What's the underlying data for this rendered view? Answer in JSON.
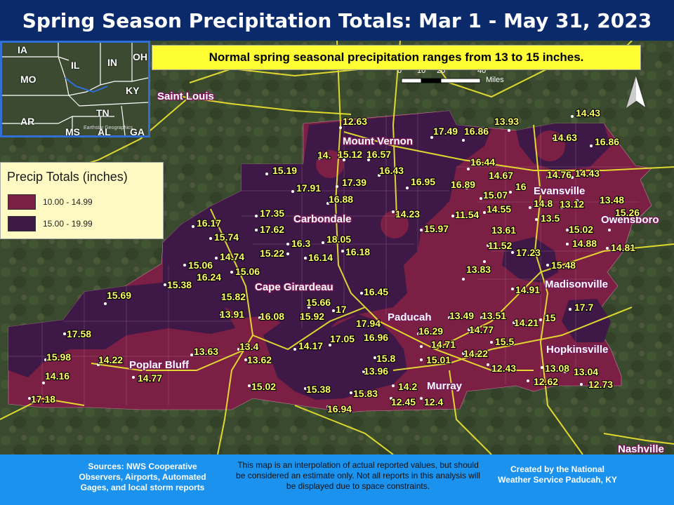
{
  "title": "Spring Season Precipitation Totals: Mar 1 - May 31, 2023",
  "note": "Normal spring seasonal precipitation ranges from 13 to 15 inches.",
  "legend": {
    "title": "Precip Totals (inches)",
    "items": [
      {
        "label": "10.00 - 14.99",
        "color": "#7b1f44"
      },
      {
        "label": "15.00 - 19.99",
        "color": "#3e1846"
      }
    ]
  },
  "scale": {
    "ticks": [
      "0",
      "10",
      "20",
      "40"
    ],
    "unit": "Miles"
  },
  "north_arrow": "north-arrow-icon",
  "inset": {
    "states": [
      {
        "key": "ia",
        "name": "IA"
      },
      {
        "key": "il",
        "name": "IL"
      },
      {
        "key": "in",
        "name": "IN"
      },
      {
        "key": "oh",
        "name": "OH"
      },
      {
        "key": "mo",
        "name": "MO"
      },
      {
        "key": "ky",
        "name": "KY"
      },
      {
        "key": "ar",
        "name": "AR"
      },
      {
        "key": "tn",
        "name": "TN"
      },
      {
        "key": "ms",
        "name": "MS"
      },
      {
        "key": "al",
        "name": "AL"
      },
      {
        "key": "ga",
        "name": "GA"
      }
    ],
    "credit": "Earthstar Geographics"
  },
  "cities": [
    "Saint Louis",
    "Mount Vernon",
    "Carbondale",
    "Evansville",
    "Owensboro",
    "Cape Girardeau",
    "Madisonville",
    "Paducah",
    "Hopkinsville",
    "Poplar Bluff",
    "Murray",
    "Nashville"
  ],
  "values": [
    "12.63",
    "17.49",
    "16.86",
    "13.93",
    "14.43",
    "14.63",
    "16.86",
    "14.",
    "15.12",
    "16.57",
    "16.43",
    "16.95",
    "16.44",
    "16.89",
    "14.67",
    "16",
    "14.76",
    "14.43",
    "15.19",
    "17.91",
    "17.39",
    "16.88",
    "15.07",
    "14.55",
    "14.8",
    "13.12",
    "13.48",
    "17.35",
    "17.62",
    "14.23",
    "11.54",
    "15.97",
    "13.5",
    "15.02",
    "15.26",
    "16.17",
    "15.74",
    "16.3",
    "18.05",
    "16.18",
    "13.61",
    "11.52",
    "17.23",
    "14.88",
    "14.81",
    "14.74",
    "15.22",
    "16.14",
    "15.06",
    "15.06",
    "16.24",
    "15.38",
    "15.48",
    "13.83",
    "14.91",
    "15.69",
    "15.82",
    "16.45",
    "15.66",
    "17",
    "13.91",
    "16.08",
    "15.92",
    "17.94",
    "16.96",
    "13.49",
    "13.51",
    "14.77",
    "14.21",
    "15",
    "17.7",
    "17.58",
    "16.29",
    "14.71",
    "15.5",
    "15.98",
    "14.22",
    "13.63",
    "13.4",
    "14.17",
    "17.05",
    "15.8",
    "15.01",
    "14.22",
    "12.43",
    "13.62",
    "14.16",
    "14.77",
    "13.96",
    "13.08",
    "13.04",
    "12.62",
    "12.73",
    "17.18",
    "15.02",
    "15.38",
    "15.83",
    "14.2",
    "12.45",
    "12.4",
    "16.94"
  ],
  "footer": {
    "sources": "Sources: NWS Cooperative Observers, Airports, Automated Gages, and local storm reports",
    "disclaimer": "This map is an interpolation of actual reported values, but should be considered an estimate only. Not all reports in this analysis will be displayed due to space constraints.",
    "credit": "Created by the National Weather Service Paducah, KY"
  }
}
